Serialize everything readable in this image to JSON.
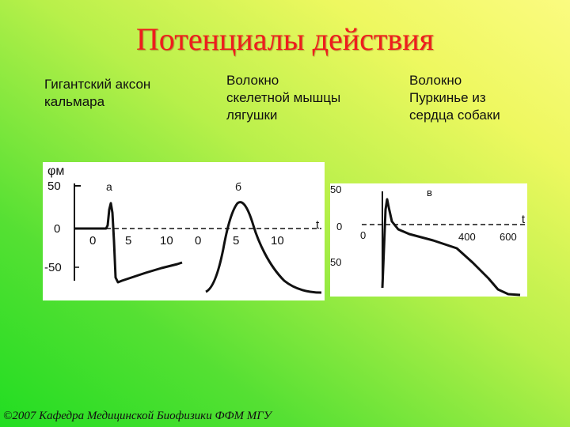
{
  "title": "Потенциалы действия",
  "captions": [
    "Гигантский аксон\nкальмара",
    "Волокно\nскелетной мышцы\nлягушки",
    "Волокно\nПуркинье из\nсердца собаки"
  ],
  "panel_ab": {
    "y_axis_label": "φм",
    "y_ticks": [
      "50",
      "0",
      "-50"
    ],
    "axis_t_label": "t",
    "curve_a": {
      "label": "a",
      "x_ticks": [
        "0",
        "5",
        "10"
      ]
    },
    "curve_b": {
      "label": "б",
      "x_ticks": [
        "0",
        "5",
        "10"
      ]
    }
  },
  "panel_c": {
    "label": "в",
    "y_ticks": [
      "50",
      "0",
      "50"
    ],
    "x_ticks": [
      "0",
      "400",
      "600"
    ],
    "axis_t_label": "t"
  },
  "footer": "©2007 Кафедра Медицинской Биофизики ФФМ МГУ"
}
